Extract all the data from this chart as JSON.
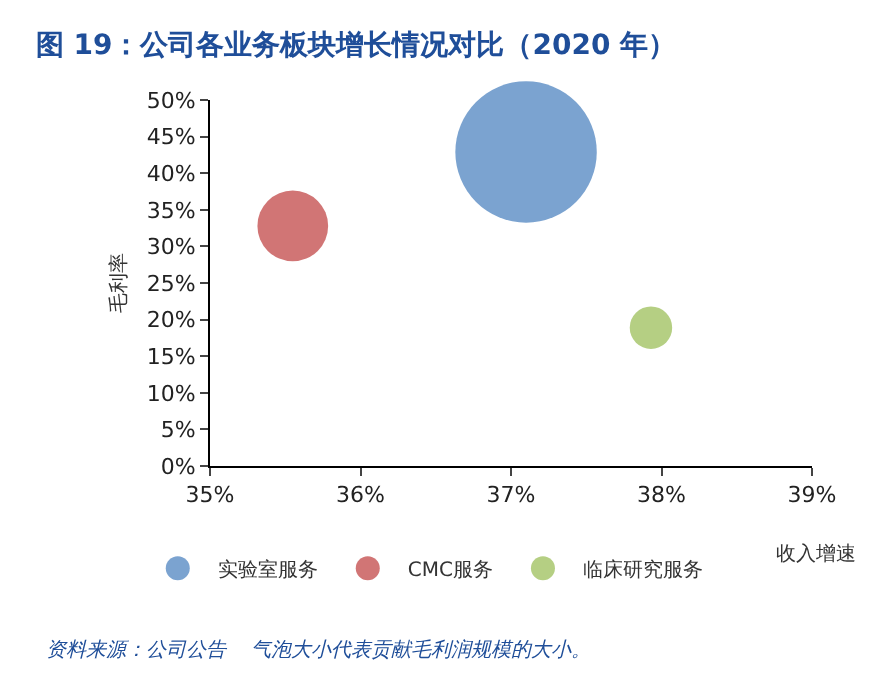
{
  "chart_data": {
    "type": "bubble",
    "title": "图 19：公司各业务板块增长情况对比（2020 年）",
    "xlabel": "收入增速",
    "ylabel": "毛利率",
    "series": [
      {
        "name": "实验室服务",
        "color": "#7ba3d0",
        "x": [
          37.1
        ],
        "values": [
          42.9
        ],
        "sizes": [
          1
        ]
      },
      {
        "name": "CMC服务",
        "color": "#d17575",
        "x": [
          35.55
        ],
        "values": [
          32.8
        ],
        "sizes": [
          0.25
        ]
      },
      {
        "name": "临床研究服务",
        "color": "#b5cf83",
        "x": [
          37.93
        ],
        "values": [
          18.9
        ],
        "sizes": [
          0.09
        ]
      }
    ],
    "xlim": [
      35,
      39
    ],
    "xticks": [
      {
        "value": 35,
        "label": "35%"
      },
      {
        "value": 36,
        "label": "36%"
      },
      {
        "value": 37,
        "label": "37%"
      },
      {
        "value": 38,
        "label": "38%"
      },
      {
        "value": 39,
        "label": "39%"
      }
    ],
    "ylim": [
      0,
      50
    ],
    "yticks": [
      {
        "value": 0,
        "label": "0%"
      },
      {
        "value": 5,
        "label": "5%"
      },
      {
        "value": 10,
        "label": "10%"
      },
      {
        "value": 15,
        "label": "15%"
      },
      {
        "value": 20,
        "label": "20%"
      },
      {
        "value": 25,
        "label": "25%"
      },
      {
        "value": 30,
        "label": "30%"
      },
      {
        "value": 35,
        "label": "35%"
      },
      {
        "value": 40,
        "label": "40%"
      },
      {
        "value": 45,
        "label": "45%"
      },
      {
        "value": 50,
        "label": "50%"
      }
    ],
    "legend": "bottom",
    "annotations": [
      "资料来源：公司公告    气泡大小代表贡献毛利润规模的大小。"
    ]
  }
}
